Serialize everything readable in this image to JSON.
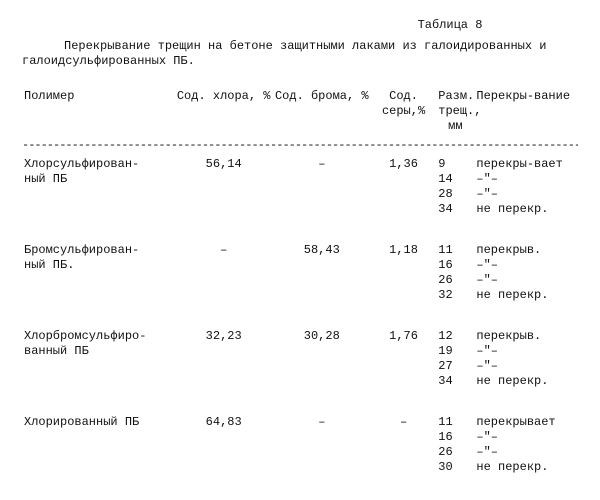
{
  "table_label": "Таблица 8",
  "caption": "Перекрывание трещин на бетоне защитными лаками из галоидированных и галоидсульфированных ПБ.",
  "headers": {
    "polymer": "Полимер",
    "chlorine": "Сод. хлора, %",
    "bromine": "Сод. брома, %",
    "sulfur": "Сод. серы,%",
    "size": "Разм. трещ., мм",
    "cover": "Перекры-вание"
  },
  "rows": [
    {
      "name": "Хлорсульфирован-\nный ПБ",
      "cl": "56,14",
      "br": "–",
      "s": "1,36",
      "detail": [
        {
          "size": "9",
          "cov": "перекры-вает"
        },
        {
          "size": "14",
          "cov": "–\"–"
        },
        {
          "size": "28",
          "cov": "–\"–"
        },
        {
          "size": "34",
          "cov": "не перекр."
        }
      ]
    },
    {
      "name": "Бромсульфирован-\nный ПБ.",
      "cl": "–",
      "br": "58,43",
      "s": "1,18",
      "detail": [
        {
          "size": "11",
          "cov": "перекрыв."
        },
        {
          "size": "16",
          "cov": "–\"–"
        },
        {
          "size": "26",
          "cov": "–\"–"
        },
        {
          "size": "32",
          "cov": "не перекр."
        }
      ]
    },
    {
      "name": "Хлорбромсульфиро-\nванный ПБ",
      "cl": "32,23",
      "br": "30,28",
      "s": "1,76",
      "detail": [
        {
          "size": "12",
          "cov": "перекрыв."
        },
        {
          "size": "19",
          "cov": "–\"–"
        },
        {
          "size": "27",
          "cov": "–\"–"
        },
        {
          "size": "34",
          "cov": "не перекр."
        }
      ]
    },
    {
      "name": "Хлорированный ПБ",
      "cl": "64,83",
      "br": "–",
      "s": "–",
      "detail": [
        {
          "size": "11",
          "cov": "перекрывает"
        },
        {
          "size": "16",
          "cov": "–\"–"
        },
        {
          "size": "26",
          "cov": "–\"–"
        },
        {
          "size": "30",
          "cov": "не перекр."
        }
      ]
    }
  ]
}
